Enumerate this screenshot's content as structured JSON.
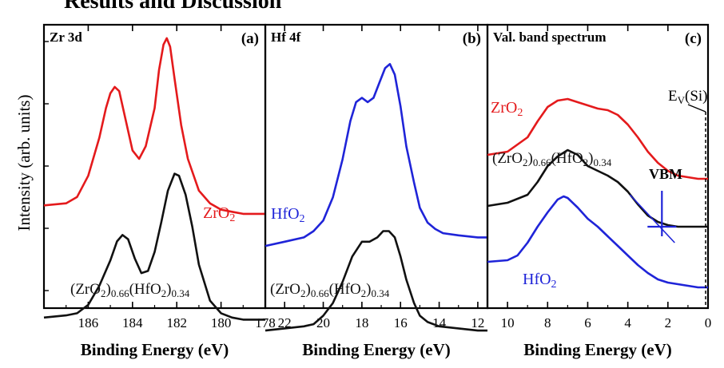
{
  "page_heading": "Results and Discussion",
  "ylabel": "Intensity (arb. units)",
  "colors": {
    "red": "#e41a1c",
    "black": "#111111",
    "blue": "#1f24d8"
  },
  "chart_data": [
    {
      "type": "line",
      "panel_label": "(a)",
      "title": "Zr 3d",
      "xlabel": "Binding Energy (eV)",
      "ylabel": "Intensity (arb. units)",
      "xlim": [
        188,
        178
      ],
      "x_reversed": true,
      "xticks": [
        "186",
        "184",
        "182",
        "180",
        "178"
      ],
      "grid": false,
      "series": [
        {
          "name": "ZrO2",
          "label_main": "ZrO",
          "label_sub": "2",
          "color": "#e41a1c",
          "x": [
            188.0,
            187.0,
            186.5,
            186.0,
            185.5,
            185.2,
            185.0,
            184.8,
            184.6,
            184.3,
            184.0,
            183.7,
            183.4,
            183.0,
            182.8,
            182.6,
            182.45,
            182.3,
            182.1,
            181.8,
            181.5,
            181.0,
            180.5,
            180.0,
            179.5,
            179.0,
            178.5,
            178.0
          ],
          "y": [
            0.18,
            0.19,
            0.22,
            0.32,
            0.5,
            0.64,
            0.71,
            0.74,
            0.72,
            0.58,
            0.44,
            0.4,
            0.46,
            0.64,
            0.82,
            0.94,
            0.97,
            0.93,
            0.78,
            0.56,
            0.4,
            0.25,
            0.19,
            0.16,
            0.15,
            0.14,
            0.14,
            0.14
          ]
        },
        {
          "name": "(ZrO2)0.66(HfO2)0.34",
          "label_parts": [
            "(ZrO",
            "2",
            ")",
            "0.66",
            "(HfO",
            "2",
            ")",
            "0.34"
          ],
          "color": "#111111",
          "x": [
            188.0,
            187.0,
            186.5,
            186.0,
            185.5,
            185.0,
            184.7,
            184.45,
            184.2,
            183.9,
            183.6,
            183.3,
            183.0,
            182.7,
            182.4,
            182.1,
            181.9,
            181.6,
            181.3,
            181.0,
            180.5,
            180.0,
            179.5,
            179.0,
            178.5,
            178.0
          ],
          "y": [
            -0.35,
            -0.34,
            -0.33,
            -0.29,
            -0.2,
            -0.08,
            0.01,
            0.04,
            0.02,
            -0.07,
            -0.14,
            -0.13,
            -0.04,
            0.1,
            0.25,
            0.33,
            0.32,
            0.23,
            0.08,
            -0.1,
            -0.27,
            -0.33,
            -0.35,
            -0.36,
            -0.36,
            -0.36
          ]
        }
      ]
    },
    {
      "type": "line",
      "panel_label": "(b)",
      "title": "Hf 4f",
      "xlabel": "Binding Energy (eV)",
      "xlim": [
        23,
        11.5
      ],
      "x_reversed": true,
      "xticks": [
        "22",
        "20",
        "18",
        "16",
        "14",
        "12"
      ],
      "grid": false,
      "series": [
        {
          "name": "HfO2",
          "label_main": "HfO",
          "label_sub": "2",
          "color": "#1f24d8",
          "x": [
            23.0,
            22.0,
            21.0,
            20.5,
            20.0,
            19.5,
            19.0,
            18.6,
            18.3,
            18.0,
            17.7,
            17.4,
            17.1,
            16.8,
            16.55,
            16.3,
            16.0,
            15.7,
            15.3,
            15.0,
            14.6,
            14.2,
            13.8,
            13.0,
            12.0,
            11.5
          ],
          "y": [
            0.03,
            0.05,
            0.07,
            0.1,
            0.15,
            0.26,
            0.44,
            0.62,
            0.71,
            0.73,
            0.71,
            0.73,
            0.8,
            0.87,
            0.89,
            0.84,
            0.69,
            0.5,
            0.33,
            0.21,
            0.14,
            0.11,
            0.09,
            0.08,
            0.07,
            0.07
          ]
        },
        {
          "name": "(ZrO2)0.66(HfO2)0.34",
          "label_parts": [
            "(ZrO",
            "2",
            ")",
            "0.66",
            "(HfO",
            "2",
            ")",
            "0.34"
          ],
          "color": "#111111",
          "x": [
            23.0,
            22.0,
            21.0,
            20.5,
            20.0,
            19.5,
            19.0,
            18.5,
            18.0,
            17.6,
            17.2,
            16.9,
            16.6,
            16.3,
            16.0,
            15.7,
            15.3,
            15.0,
            14.6,
            14.0,
            13.0,
            12.0,
            11.5
          ],
          "y": [
            -0.37,
            -0.36,
            -0.35,
            -0.34,
            -0.3,
            -0.24,
            -0.14,
            -0.02,
            0.05,
            0.05,
            0.07,
            0.1,
            0.1,
            0.07,
            -0.02,
            -0.13,
            -0.24,
            -0.3,
            -0.33,
            -0.35,
            -0.36,
            -0.37,
            -0.37
          ]
        }
      ]
    },
    {
      "type": "line",
      "panel_label": "(c)",
      "title": "Val. band spectrum",
      "xlabel": "Binding Energy (eV)",
      "xlim": [
        11,
        0
      ],
      "x_reversed": true,
      "xticks": [
        "10",
        "8",
        "6",
        "4",
        "2",
        "0"
      ],
      "grid": false,
      "series": [
        {
          "name": "ZrO2",
          "label_main": "ZrO",
          "label_sub": "2",
          "color": "#e41a1c",
          "x": [
            11.0,
            10.0,
            9.0,
            8.5,
            8.0,
            7.5,
            7.0,
            6.5,
            6.0,
            5.5,
            5.0,
            4.5,
            4.0,
            3.5,
            3.0,
            2.5,
            2.0,
            1.5,
            1.0,
            0.5,
            0.0
          ],
          "y": [
            0.37,
            0.39,
            0.48,
            0.58,
            0.67,
            0.71,
            0.72,
            0.7,
            0.68,
            0.66,
            0.65,
            0.62,
            0.56,
            0.48,
            0.39,
            0.32,
            0.27,
            0.24,
            0.23,
            0.22,
            0.22
          ]
        },
        {
          "name": "(ZrO2)0.66(HfO2)0.34",
          "label_parts": [
            "(ZrO",
            "2",
            ")",
            "0.66",
            "(HfO",
            "2",
            ")",
            "0.34"
          ],
          "color": "#111111",
          "x": [
            11.0,
            10.0,
            9.0,
            8.5,
            8.0,
            7.5,
            7.0,
            6.5,
            6.0,
            5.5,
            5.0,
            4.5,
            4.0,
            3.5,
            3.0,
            2.5,
            2.0,
            1.5,
            1.0,
            0.5,
            0.0
          ],
          "y": [
            0.05,
            0.07,
            0.12,
            0.2,
            0.3,
            0.36,
            0.4,
            0.37,
            0.3,
            0.27,
            0.24,
            0.2,
            0.14,
            0.06,
            -0.01,
            -0.05,
            -0.07,
            -0.08,
            -0.08,
            -0.08,
            -0.08
          ]
        },
        {
          "name": "HfO2",
          "label_main": "HfO",
          "label_sub": "2",
          "color": "#1f24d8",
          "x": [
            11.0,
            10.0,
            9.5,
            9.0,
            8.5,
            8.0,
            7.5,
            7.2,
            7.0,
            6.5,
            6.0,
            5.5,
            5.0,
            4.5,
            4.0,
            3.5,
            3.0,
            2.5,
            2.0,
            1.5,
            1.0,
            0.5,
            0.0
          ],
          "y": [
            -0.3,
            -0.29,
            -0.26,
            -0.18,
            -0.08,
            0.01,
            0.09,
            0.11,
            0.1,
            0.04,
            -0.03,
            -0.08,
            -0.14,
            -0.2,
            -0.26,
            -0.32,
            -0.37,
            -0.41,
            -0.43,
            -0.44,
            -0.45,
            -0.46,
            -0.46
          ]
        }
      ],
      "annotations": {
        "ev_main": "E",
        "ev_sub": "V",
        "ev_rest": "(Si)",
        "vbm": "VBM",
        "vbm_binding_energy_eV": 2.3,
        "vbm_intensity": -0.08,
        "fermi_reference_eV": 0.0
      }
    }
  ]
}
